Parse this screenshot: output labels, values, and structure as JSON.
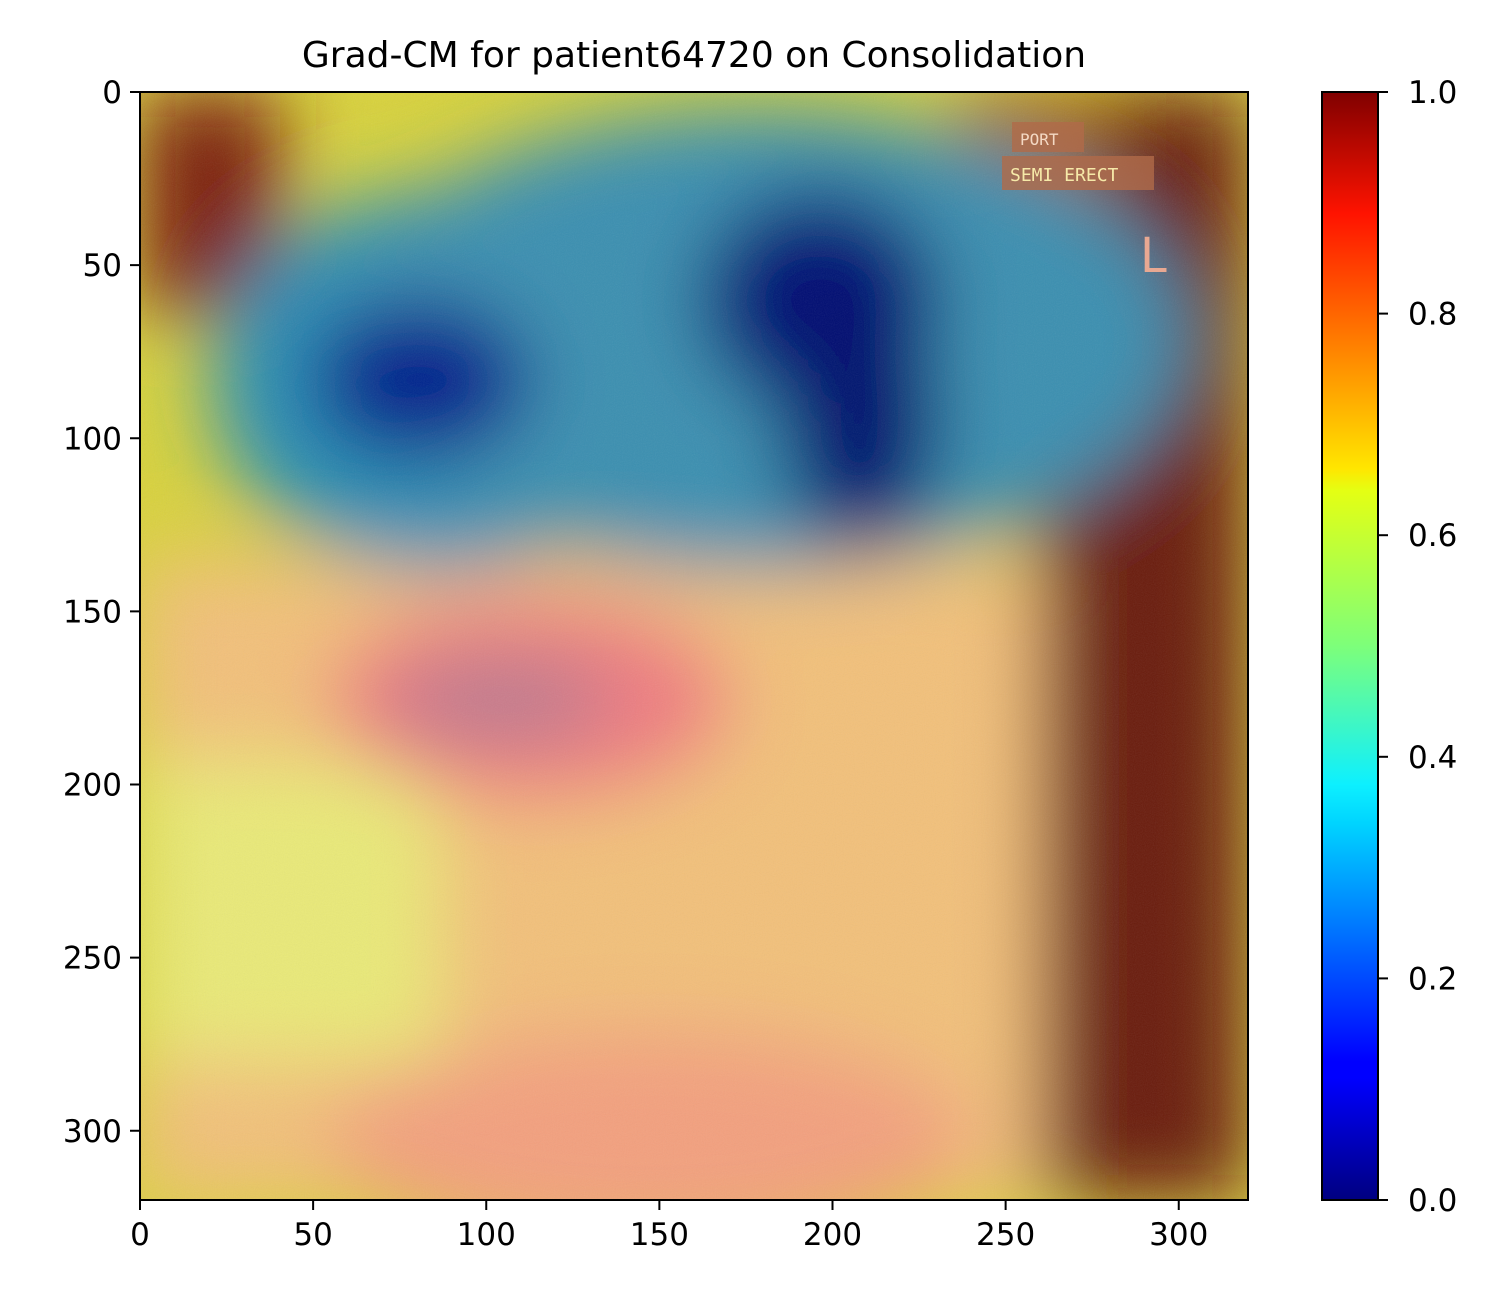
{
  "chart_data": {
    "type": "heatmap",
    "title": "Grad-CM for patient64720 on Consolidation",
    "xlabel": "",
    "ylabel": "",
    "xlim": [
      0,
      320
    ],
    "ylim": [
      320,
      0
    ],
    "x_ticks": [
      0,
      50,
      100,
      150,
      200,
      250,
      300
    ],
    "y_ticks": [
      0,
      50,
      100,
      150,
      200,
      250,
      300
    ],
    "colormap": "jet",
    "colorbar": {
      "range": [
        0,
        1
      ],
      "ticks": [
        "0.0",
        "0.2",
        "0.4",
        "0.6",
        "0.8",
        "1.0"
      ]
    },
    "overlay_image": "chest x-ray",
    "image_text": [
      "PORT",
      "SEMI ERECT",
      "L"
    ],
    "activation_regions": [
      {
        "x": 80,
        "y": 85,
        "value": 0.05
      },
      {
        "x": 190,
        "y": 75,
        "value": 0.0
      },
      {
        "x": 205,
        "y": 110,
        "value": 0.05
      },
      {
        "x": 110,
        "y": 180,
        "value": 0.9
      },
      {
        "x": 10,
        "y": 30,
        "value": 1.0
      },
      {
        "x": 310,
        "y": 60,
        "value": 1.0
      },
      {
        "x": 310,
        "y": 250,
        "value": 1.0
      },
      {
        "x": 140,
        "y": 300,
        "value": 0.78
      },
      {
        "x": 30,
        "y": 270,
        "value": 0.65
      }
    ],
    "colors": {
      "jet": [
        "#000080",
        "#0000ff",
        "#00ffff",
        "#ffff00",
        "#ff0000",
        "#800000"
      ]
    }
  }
}
